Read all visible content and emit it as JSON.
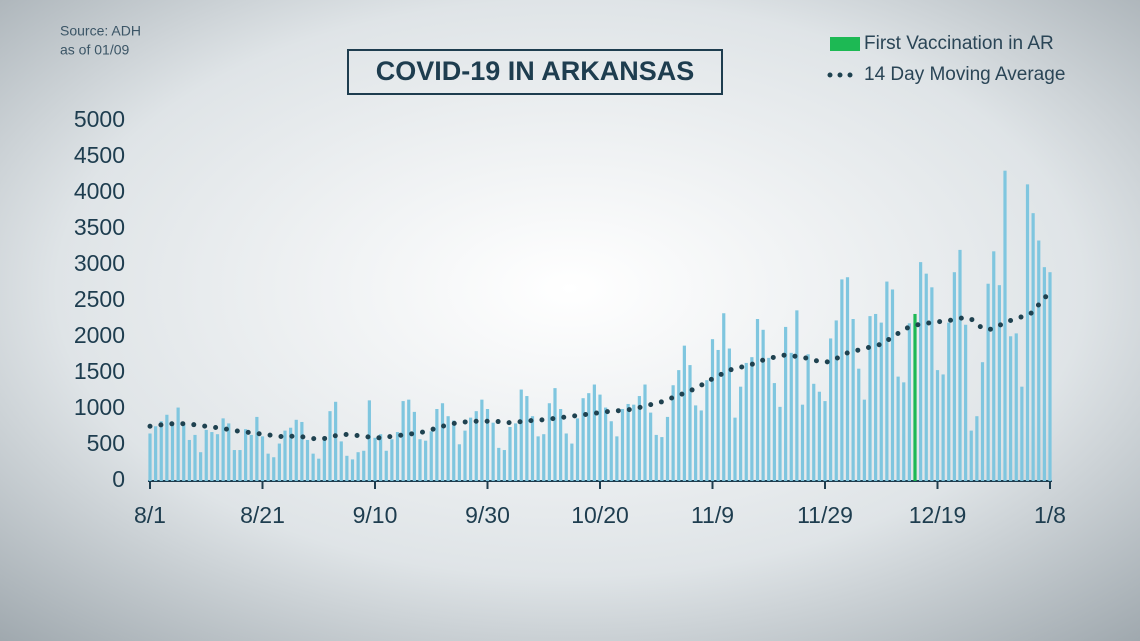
{
  "chart_data": {
    "type": "bar",
    "title": "COVID-19 IN ARKANSAS",
    "source": "Source: ADH",
    "as_of": "as of 01/09",
    "categories": [
      "8/1",
      null,
      null,
      null,
      null,
      null,
      null,
      null,
      null,
      null,
      null,
      null,
      null,
      null,
      null,
      null,
      null,
      null,
      null,
      null,
      "8/21",
      null,
      null,
      null,
      null,
      null,
      null,
      null,
      null,
      null,
      null,
      null,
      null,
      null,
      null,
      null,
      null,
      null,
      null,
      null,
      "9/10",
      null,
      null,
      null,
      null,
      null,
      null,
      null,
      null,
      null,
      null,
      null,
      null,
      null,
      null,
      null,
      null,
      null,
      null,
      null,
      "9/30",
      null,
      null,
      null,
      null,
      null,
      null,
      null,
      null,
      null,
      null,
      null,
      null,
      null,
      null,
      null,
      null,
      null,
      null,
      null,
      "10/20",
      null,
      null,
      null,
      null,
      null,
      null,
      null,
      null,
      null,
      null,
      null,
      null,
      null,
      null,
      null,
      null,
      null,
      null,
      null,
      "11/9",
      null,
      null,
      null,
      null,
      null,
      null,
      null,
      null,
      null,
      null,
      null,
      null,
      null,
      null,
      null,
      null,
      null,
      null,
      null,
      "11/29",
      null,
      null,
      null,
      null,
      null,
      null,
      null,
      null,
      null,
      null,
      null,
      null,
      null,
      null,
      null,
      null,
      null,
      null,
      null,
      "12/19",
      null,
      null,
      null,
      null,
      null,
      null,
      null,
      null,
      null,
      null,
      null,
      null,
      null,
      null,
      null,
      null,
      null,
      null,
      null,
      "1/8"
    ],
    "series": [
      {
        "type": "bar",
        "color": "#7fc6df",
        "values": [
          660,
          760,
          830,
          920,
          790,
          1020,
          790,
          570,
          640,
          400,
          710,
          680,
          650,
          870,
          800,
          430,
          430,
          720,
          640,
          890,
          620,
          380,
          330,
          520,
          700,
          740,
          850,
          820,
          570,
          380,
          310,
          600,
          970,
          1100,
          550,
          350,
          300,
          400,
          420,
          1120,
          600,
          650,
          420,
          580,
          680,
          1110,
          1130,
          960,
          580,
          560,
          690,
          1000,
          1080,
          900,
          840,
          510,
          700,
          880,
          970,
          1130,
          1000,
          810,
          460,
          430,
          750,
          800,
          1270,
          1180,
          900,
          620,
          650,
          1080,
          1290,
          1000,
          660,
          520,
          870,
          1150,
          1220,
          1340,
          1200,
          1020,
          830,
          620,
          1000,
          1070,
          1060,
          1180,
          1340,
          950,
          640,
          610,
          890,
          1330,
          1540,
          1880,
          1610,
          1050,
          980,
          1400,
          1970,
          1820,
          2330,
          1840,
          880,
          1310,
          1640,
          1720,
          2250,
          2100,
          1710,
          1360,
          1030,
          2140,
          1780,
          2370,
          1060,
          1760,
          1350,
          1240,
          1110,
          1980,
          2230,
          2800,
          2830,
          2250,
          1560,
          1130,
          2290,
          2320,
          2200,
          2770,
          2660,
          1450,
          1370,
          2190,
          null,
          3040,
          2880,
          2690,
          1540,
          1480,
          2200,
          2900,
          3210,
          2170,
          700,
          900,
          1650,
          2740,
          3190,
          2720,
          4310,
          2010,
          2050,
          1310,
          4120,
          3720,
          3340,
          2970,
          2900
        ]
      },
      {
        "type": "bar",
        "name": "First Vaccination in AR",
        "color": "#1db954",
        "values": [
          null,
          null,
          null,
          null,
          null,
          null,
          null,
          null,
          null,
          null,
          null,
          null,
          null,
          null,
          null,
          null,
          null,
          null,
          null,
          null,
          null,
          null,
          null,
          null,
          null,
          null,
          null,
          null,
          null,
          null,
          null,
          null,
          null,
          null,
          null,
          null,
          null,
          null,
          null,
          null,
          null,
          null,
          null,
          null,
          null,
          null,
          null,
          null,
          null,
          null,
          null,
          null,
          null,
          null,
          null,
          null,
          null,
          null,
          null,
          null,
          null,
          null,
          null,
          null,
          null,
          null,
          null,
          null,
          null,
          null,
          null,
          null,
          null,
          null,
          null,
          null,
          null,
          null,
          null,
          null,
          null,
          null,
          null,
          null,
          null,
          null,
          null,
          null,
          null,
          null,
          null,
          null,
          null,
          null,
          null,
          null,
          null,
          null,
          null,
          null,
          null,
          null,
          null,
          null,
          null,
          null,
          null,
          null,
          null,
          null,
          null,
          null,
          null,
          null,
          null,
          null,
          null,
          null,
          null,
          null,
          null,
          null,
          null,
          null,
          null,
          null,
          null,
          null,
          null,
          null,
          null,
          null,
          null,
          null,
          null,
          null,
          2320,
          null,
          null,
          null,
          null,
          null,
          null,
          null,
          null,
          null,
          null,
          null,
          null,
          null,
          null,
          null,
          null,
          null,
          null,
          null,
          null,
          null,
          null,
          null,
          null
        ]
      },
      {
        "type": "line",
        "name": "14 Day Moving Average",
        "color": "#1f4250",
        "style": "dotted",
        "values": [
          760,
          770,
          780,
          790,
          795,
          800,
          795,
          790,
          780,
          770,
          760,
          750,
          740,
          730,
          715,
          700,
          690,
          680,
          670,
          660,
          650,
          640,
          630,
          620,
          615,
          620,
          625,
          615,
          600,
          590,
          580,
          590,
          610,
          630,
          650,
          645,
          640,
          630,
          620,
          610,
          600,
          600,
          610,
          620,
          630,
          640,
          650,
          660,
          670,
          690,
          710,
          740,
          760,
          780,
          800,
          810,
          820,
          830,
          830,
          830,
          830,
          830,
          825,
          815,
          810,
          815,
          825,
          835,
          840,
          845,
          850,
          860,
          870,
          880,
          890,
          900,
          910,
          920,
          930,
          940,
          950,
          960,
          970,
          975,
          980,
          990,
          1000,
          1020,
          1040,
          1060,
          1080,
          1100,
          1130,
          1160,
          1190,
          1220,
          1250,
          1290,
          1330,
          1380,
          1420,
          1460,
          1500,
          1540,
          1560,
          1580,
          1600,
          1620,
          1650,
          1680,
          1700,
          1720,
          1740,
          1750,
          1740,
          1730,
          1720,
          1700,
          1680,
          1660,
          1650,
          1660,
          1700,
          1740,
          1780,
          1800,
          1820,
          1840,
          1860,
          1880,
          1900,
          1950,
          2000,
          2050,
          2100,
          2140,
          2160,
          2180,
          2190,
          2200,
          2210,
          2220,
          2230,
          2240,
          2260,
          2270,
          2250,
          2180,
          2120,
          2100,
          2120,
          2160,
          2200,
          2230,
          2260,
          2280,
          2300,
          2350,
          2450,
          2530,
          2650
        ]
      }
    ],
    "ylim": [
      0,
      5000
    ],
    "yticks": [
      0,
      500,
      1000,
      1500,
      2000,
      2500,
      3000,
      3500,
      4000,
      4500,
      5000
    ]
  }
}
